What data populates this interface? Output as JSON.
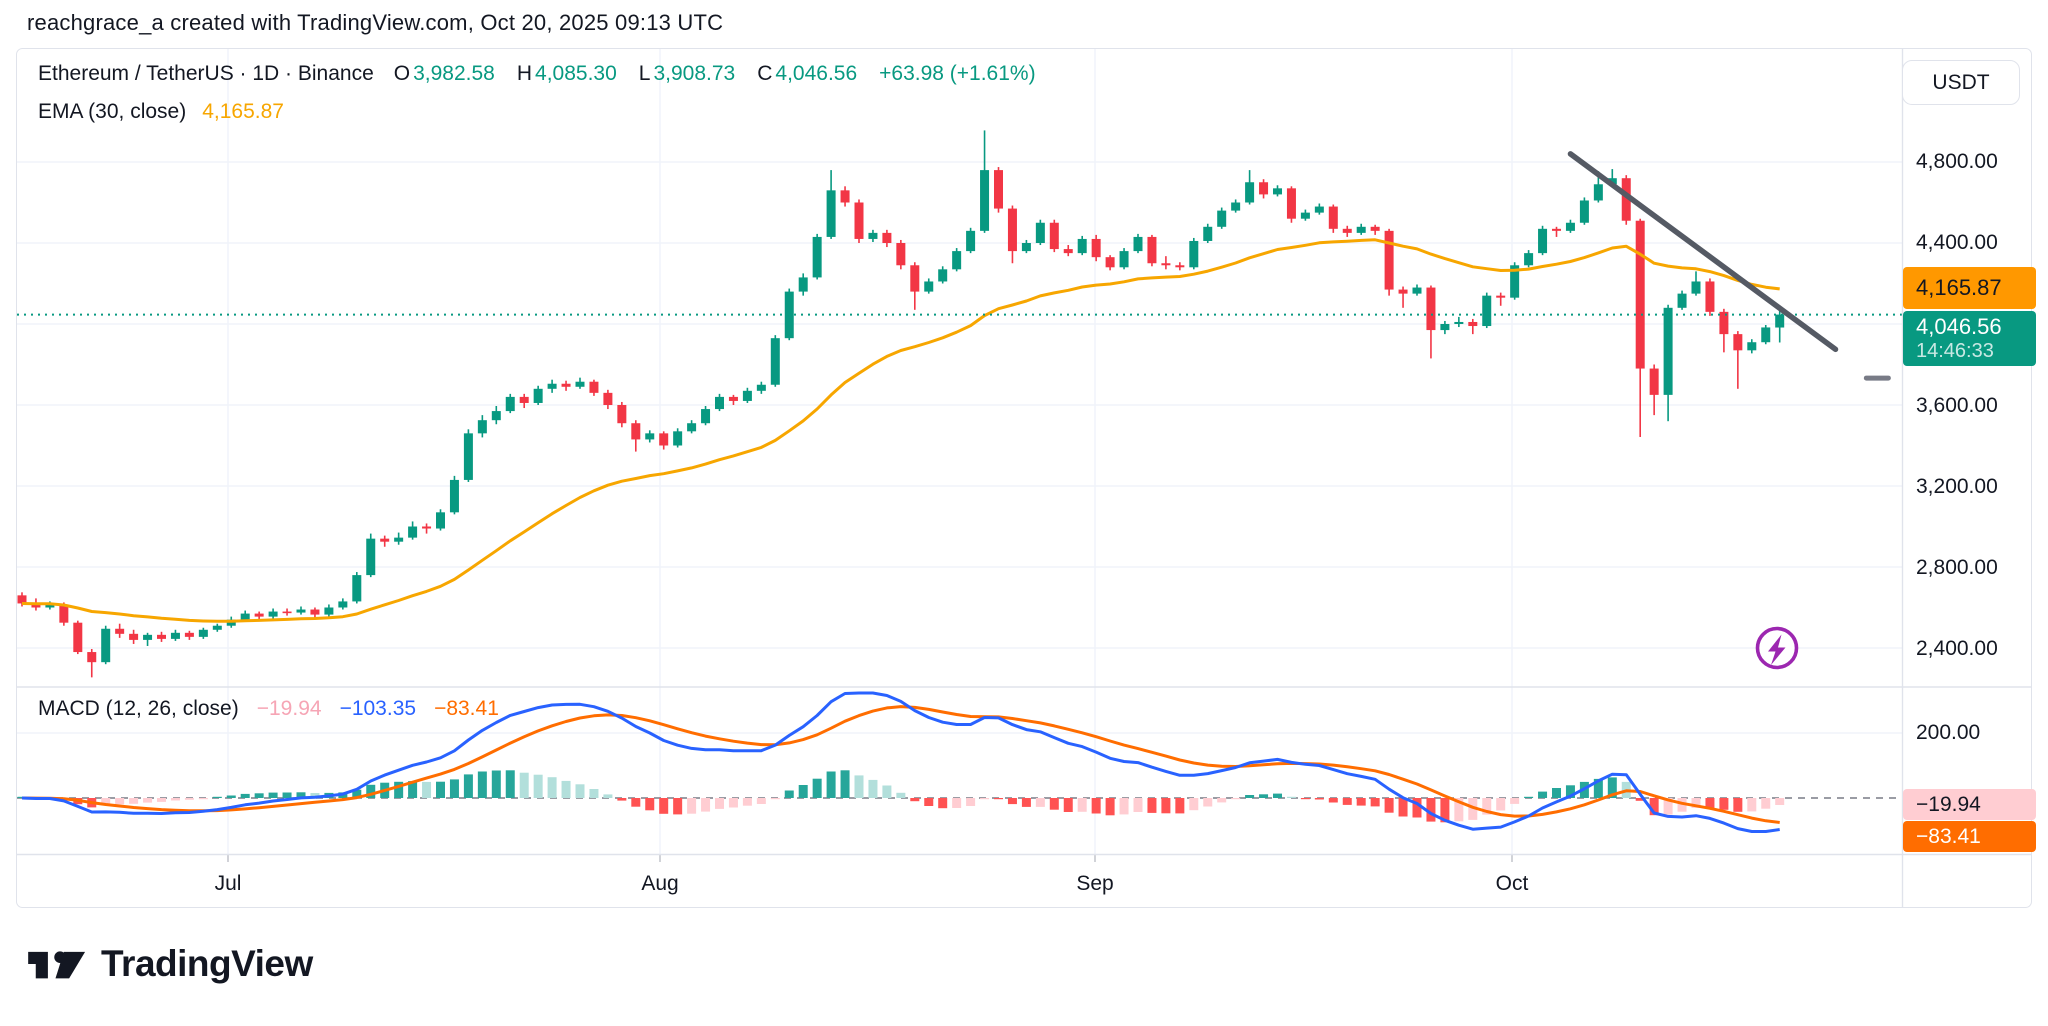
{
  "header": {
    "attribution": "reachgrace_a created with TradingView.com, Oct 20, 2025 09:13 UTC"
  },
  "symbol_row": {
    "title": "Ethereum / TetherUS · 1D · Binance",
    "open_label": "O",
    "open": "3,982.58",
    "high_label": "H",
    "high": "4,085.30",
    "low_label": "L",
    "low": "3,908.73",
    "close_label": "C",
    "close": "4,046.56",
    "change": "+63.98 (+1.61%)"
  },
  "ema_row": {
    "label": "EMA (30, close)",
    "value": "4,165.87"
  },
  "macd_row": {
    "label": "MACD (12, 26, close)",
    "histogram_value": "−19.94",
    "macd_value": "−103.35",
    "signal_value": "−83.41"
  },
  "currency_button": "USDT",
  "price_axis": {
    "labels": [
      "4,800.00",
      "4,400.00",
      "3,600.00",
      "3,200.00",
      "2,800.00",
      "2,400.00"
    ],
    "ema_badge": "4,165.87",
    "close_badge": "4,046.56",
    "countdown": "14:46:33"
  },
  "macd_axis": {
    "tick": "200.00",
    "histogram_badge": "−19.94",
    "signal_badge": "−83.41"
  },
  "time_axis": {
    "labels": [
      "Jul",
      "Aug",
      "Sep",
      "Oct"
    ]
  },
  "footer": {
    "brand": "TradingView"
  },
  "colors": {
    "background": "#ffffff",
    "border": "#e0e3eb",
    "grid": "#f0f3fa",
    "text": "#131722",
    "muted": "#787b86",
    "up": "#089981",
    "down": "#f23645",
    "ema": "#f7a600",
    "price_dotted": "#089981",
    "trendline": "#555a64",
    "macd_line": "#2962ff",
    "signal_line": "#ff6d00",
    "hist_up_strong": "#26a69a",
    "hist_up_weak": "#b2dfdb",
    "hist_down_strong": "#ff5252",
    "hist_down_weak": "#ffcdd2",
    "bolt": "#9c27b0"
  },
  "chart_data": [
    {
      "type": "candlestick",
      "title": "Ethereum / TetherUS",
      "interval": "1D",
      "exchange": "Binance",
      "x_start_date": "2025-06-16",
      "x_end_date": "2025-10-20",
      "xticks": [
        "Jul",
        "Aug",
        "Sep",
        "Oct"
      ],
      "yticks": [
        2400,
        2800,
        3200,
        3600,
        4000,
        4400,
        4800
      ],
      "ylim": [
        2250,
        5000
      ],
      "price_line_level": 4046.56,
      "last_ohlc": {
        "o": 3982.58,
        "h": 4085.3,
        "l": 3908.73,
        "c": 4046.56,
        "change": 63.98,
        "change_pct": 1.61
      },
      "overlays": [
        {
          "name": "EMA",
          "length": 30,
          "source": "close",
          "last_value": 4165.87
        }
      ],
      "drawings": [
        {
          "type": "trendline",
          "from": {
            "index": 111,
            "price": 4840
          },
          "to": {
            "index": 130,
            "price": 3875
          }
        },
        {
          "type": "dash-marker",
          "index": 133,
          "price": 3733
        }
      ],
      "ohlc": [
        [
          2660,
          2675,
          2605,
          2620
        ],
        [
          2620,
          2645,
          2585,
          2600
        ],
        [
          2600,
          2630,
          2590,
          2615
        ],
        [
          2615,
          2625,
          2510,
          2525
        ],
        [
          2525,
          2535,
          2370,
          2380
        ],
        [
          2380,
          2395,
          2255,
          2330
        ],
        [
          2330,
          2510,
          2320,
          2495
        ],
        [
          2495,
          2520,
          2450,
          2470
        ],
        [
          2470,
          2490,
          2420,
          2440
        ],
        [
          2440,
          2475,
          2410,
          2465
        ],
        [
          2465,
          2480,
          2430,
          2445
        ],
        [
          2445,
          2490,
          2435,
          2475
        ],
        [
          2475,
          2485,
          2440,
          2455
        ],
        [
          2455,
          2500,
          2445,
          2490
        ],
        [
          2490,
          2520,
          2480,
          2510
        ],
        [
          2510,
          2555,
          2500,
          2540
        ],
        [
          2540,
          2585,
          2530,
          2570
        ],
        [
          2570,
          2580,
          2540,
          2555
        ],
        [
          2555,
          2595,
          2545,
          2580
        ],
        [
          2580,
          2595,
          2560,
          2575
        ],
        [
          2575,
          2605,
          2565,
          2590
        ],
        [
          2590,
          2600,
          2550,
          2565
        ],
        [
          2565,
          2615,
          2555,
          2600
        ],
        [
          2600,
          2645,
          2590,
          2630
        ],
        [
          2630,
          2775,
          2620,
          2760
        ],
        [
          2760,
          2965,
          2750,
          2940
        ],
        [
          2940,
          2955,
          2900,
          2925
        ],
        [
          2925,
          2970,
          2910,
          2945
        ],
        [
          2945,
          3025,
          2935,
          3000
        ],
        [
          3000,
          3015,
          2965,
          2990
        ],
        [
          2990,
          3085,
          2980,
          3070
        ],
        [
          3070,
          3250,
          3060,
          3230
        ],
        [
          3230,
          3480,
          3220,
          3460
        ],
        [
          3460,
          3550,
          3440,
          3525
        ],
        [
          3525,
          3595,
          3505,
          3570
        ],
        [
          3570,
          3655,
          3560,
          3640
        ],
        [
          3640,
          3655,
          3585,
          3610
        ],
        [
          3610,
          3695,
          3600,
          3680
        ],
        [
          3680,
          3725,
          3660,
          3705
        ],
        [
          3705,
          3720,
          3670,
          3690
        ],
        [
          3690,
          3735,
          3680,
          3715
        ],
        [
          3715,
          3725,
          3645,
          3660
        ],
        [
          3660,
          3675,
          3580,
          3600
        ],
        [
          3600,
          3615,
          3490,
          3510
        ],
        [
          3510,
          3525,
          3370,
          3430
        ],
        [
          3430,
          3475,
          3415,
          3460
        ],
        [
          3460,
          3470,
          3380,
          3400
        ],
        [
          3400,
          3485,
          3390,
          3470
        ],
        [
          3470,
          3525,
          3460,
          3510
        ],
        [
          3510,
          3595,
          3500,
          3580
        ],
        [
          3580,
          3655,
          3570,
          3640
        ],
        [
          3640,
          3650,
          3600,
          3620
        ],
        [
          3620,
          3685,
          3610,
          3670
        ],
        [
          3670,
          3715,
          3655,
          3700
        ],
        [
          3700,
          3945,
          3690,
          3930
        ],
        [
          3930,
          4175,
          3920,
          4160
        ],
        [
          4160,
          4250,
          4140,
          4230
        ],
        [
          4230,
          4445,
          4220,
          4430
        ],
        [
          4430,
          4760,
          4420,
          4660
        ],
        [
          4660,
          4680,
          4580,
          4600
        ],
        [
          4600,
          4615,
          4400,
          4420
        ],
        [
          4420,
          4465,
          4405,
          4450
        ],
        [
          4450,
          4465,
          4380,
          4400
        ],
        [
          4400,
          4415,
          4270,
          4290
        ],
        [
          4290,
          4305,
          4070,
          4160
        ],
        [
          4160,
          4225,
          4150,
          4210
        ],
        [
          4210,
          4285,
          4200,
          4270
        ],
        [
          4270,
          4375,
          4260,
          4360
        ],
        [
          4360,
          4475,
          4350,
          4460
        ],
        [
          4460,
          4956,
          4450,
          4760
        ],
        [
          4760,
          4775,
          4550,
          4570
        ],
        [
          4570,
          4585,
          4300,
          4360
        ],
        [
          4360,
          4415,
          4350,
          4400
        ],
        [
          4400,
          4515,
          4390,
          4500
        ],
        [
          4500,
          4515,
          4355,
          4370
        ],
        [
          4370,
          4390,
          4335,
          4350
        ],
        [
          4350,
          4435,
          4340,
          4420
        ],
        [
          4420,
          4440,
          4310,
          4330
        ],
        [
          4330,
          4340,
          4265,
          4280
        ],
        [
          4280,
          4375,
          4270,
          4360
        ],
        [
          4360,
          4445,
          4350,
          4430
        ],
        [
          4430,
          4440,
          4285,
          4300
        ],
        [
          4300,
          4335,
          4270,
          4290
        ],
        [
          4290,
          4305,
          4265,
          4280
        ],
        [
          4280,
          4425,
          4270,
          4410
        ],
        [
          4410,
          4495,
          4400,
          4480
        ],
        [
          4480,
          4575,
          4470,
          4560
        ],
        [
          4560,
          4615,
          4550,
          4600
        ],
        [
          4600,
          4760,
          4590,
          4700
        ],
        [
          4700,
          4715,
          4620,
          4640
        ],
        [
          4640,
          4685,
          4630,
          4670
        ],
        [
          4670,
          4680,
          4500,
          4520
        ],
        [
          4520,
          4565,
          4510,
          4550
        ],
        [
          4550,
          4595,
          4540,
          4580
        ],
        [
          4580,
          4590,
          4450,
          4470
        ],
        [
          4470,
          4485,
          4430,
          4450
        ],
        [
          4450,
          4495,
          4440,
          4480
        ],
        [
          4480,
          4490,
          4440,
          4460
        ],
        [
          4460,
          4470,
          4140,
          4170
        ],
        [
          4170,
          4185,
          4080,
          4150
        ],
        [
          4150,
          4195,
          4140,
          4180
        ],
        [
          4180,
          4190,
          3830,
          3970
        ],
        [
          3970,
          4015,
          3950,
          4000
        ],
        [
          4000,
          4035,
          3985,
          4010
        ],
        [
          4010,
          4025,
          3950,
          3990
        ],
        [
          3990,
          4155,
          3980,
          4140
        ],
        [
          4140,
          4155,
          4090,
          4130
        ],
        [
          4130,
          4305,
          4120,
          4290
        ],
        [
          4290,
          4365,
          4280,
          4350
        ],
        [
          4350,
          4485,
          4340,
          4470
        ],
        [
          4470,
          4480,
          4430,
          4460
        ],
        [
          4460,
          4515,
          4450,
          4500
        ],
        [
          4500,
          4625,
          4490,
          4610
        ],
        [
          4610,
          4755,
          4600,
          4690
        ],
        [
          4690,
          4765,
          4680,
          4720
        ],
        [
          4720,
          4735,
          4490,
          4510
        ],
        [
          4510,
          4520,
          3442,
          3780
        ],
        [
          3780,
          3800,
          3550,
          3650
        ],
        [
          3650,
          4095,
          3520,
          4080
        ],
        [
          4080,
          4165,
          4070,
          4150
        ],
        [
          4150,
          4260,
          4140,
          4210
        ],
        [
          4210,
          4225,
          4040,
          4060
        ],
        [
          4060,
          4075,
          3860,
          3950
        ],
        [
          3950,
          3965,
          3680,
          3870
        ],
        [
          3870,
          3925,
          3855,
          3910
        ],
        [
          3910,
          3995,
          3900,
          3983
        ],
        [
          3982.58,
          4085.3,
          3908.73,
          4046.56
        ]
      ]
    },
    {
      "type": "macd",
      "params": {
        "fast": 12,
        "slow": 26,
        "signal": 9,
        "source": "close"
      },
      "computed_from": "closes of chart_data[0].ohlc",
      "last_values": {
        "histogram": -19.94,
        "macd": -103.35,
        "signal": -83.41
      },
      "yticks": [
        0,
        200
      ],
      "ylim": [
        -180,
        335
      ]
    }
  ]
}
